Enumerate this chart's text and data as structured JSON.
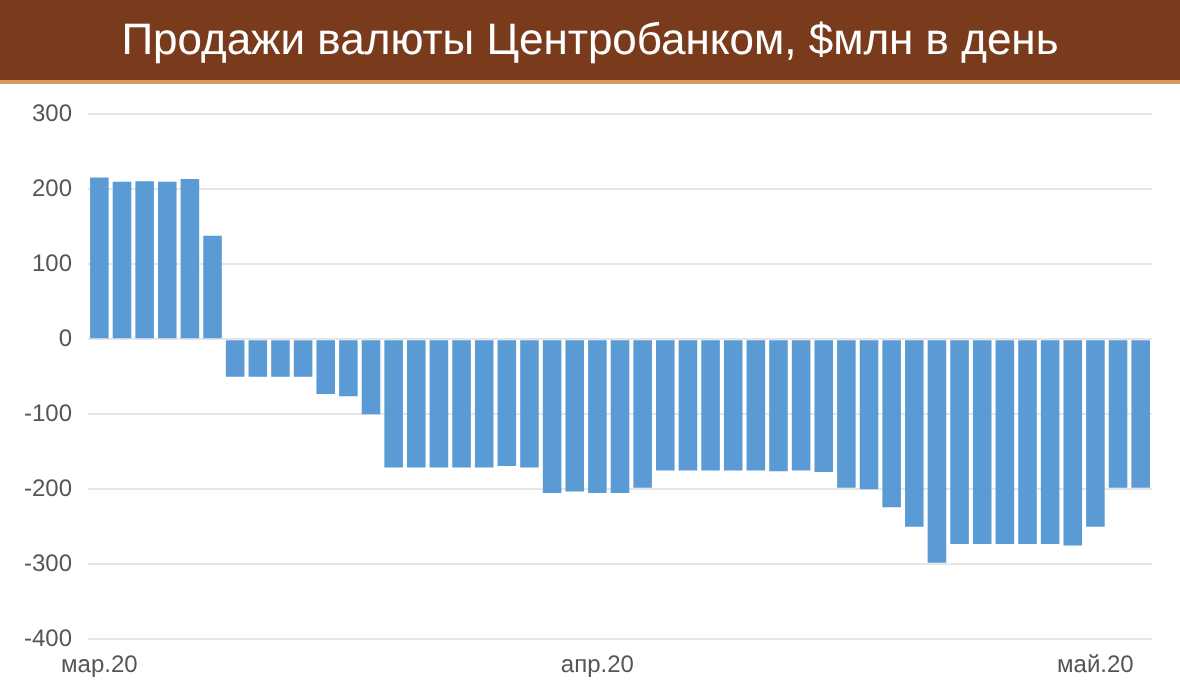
{
  "chart_data": {
    "type": "bar",
    "title": "Продажи валюты Центробанком, $млн в день",
    "categories": [
      "мар.20",
      null,
      null,
      null,
      null,
      null,
      null,
      null,
      null,
      null,
      null,
      null,
      null,
      null,
      null,
      null,
      null,
      null,
      null,
      null,
      null,
      null,
      "апр.20",
      null,
      null,
      null,
      null,
      null,
      null,
      null,
      null,
      null,
      null,
      null,
      null,
      null,
      null,
      null,
      null,
      null,
      null,
      null,
      null,
      null,
      "май.20",
      null,
      null
    ],
    "values": [
      216,
      210,
      211,
      210,
      214,
      138,
      -50,
      -50,
      -50,
      -50,
      -73,
      -76,
      -100,
      -171,
      -171,
      -171,
      -171,
      -171,
      -169,
      -171,
      -205,
      -203,
      -205,
      -205,
      -198,
      -175,
      -175,
      -175,
      -175,
      -175,
      -176,
      -175,
      -177,
      -198,
      -200,
      -224,
      -250,
      -298,
      -273,
      -273,
      -273,
      -273,
      -273,
      -275,
      -250,
      -198,
      -198
    ],
    "color": "#5b9bd5",
    "ylim": [
      -400,
      300
    ],
    "yticks": [
      -400,
      -300,
      -200,
      -100,
      0,
      100,
      200,
      300
    ],
    "grid": "y"
  }
}
